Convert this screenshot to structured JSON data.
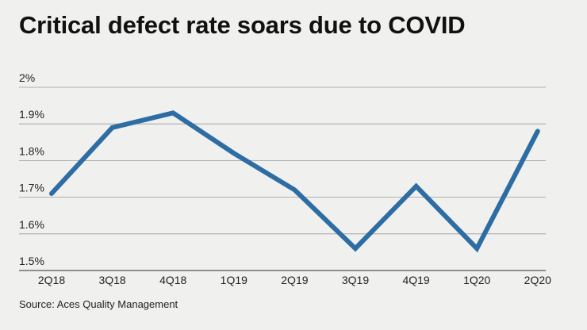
{
  "title": "Critical defect rate soars due to COVID",
  "source": "Source: Aces Quality Management",
  "colors": {
    "background": "#f0f0ee",
    "line": "#2e6da4",
    "grid": "#9a9a9a"
  },
  "chart_data": {
    "type": "line",
    "title": "Critical defect rate soars due to COVID",
    "xlabel": "",
    "ylabel": "",
    "categories": [
      "2Q18",
      "3Q18",
      "4Q18",
      "1Q19",
      "2Q19",
      "3Q19",
      "4Q19",
      "1Q20",
      "2Q20"
    ],
    "series": [
      {
        "name": "Critical defect rate",
        "values": [
          1.71,
          1.89,
          1.93,
          1.82,
          1.72,
          1.56,
          1.73,
          1.56,
          1.88
        ]
      }
    ],
    "ylim": [
      1.5,
      2.0
    ],
    "yticks": [
      1.5,
      1.6,
      1.7,
      1.8,
      1.9,
      2.0
    ],
    "ytick_labels": [
      "1.5%",
      "1.6%",
      "1.7%",
      "1.8%",
      "1.9%",
      "2%"
    ],
    "grid": true
  }
}
